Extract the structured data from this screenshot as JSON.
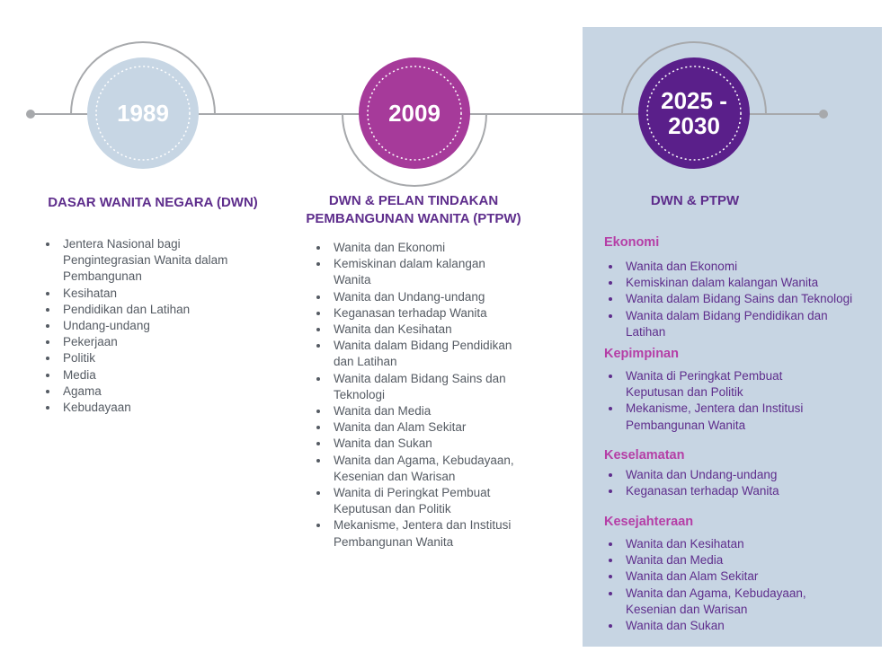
{
  "colors": {
    "circle_1989": "#c7d6e4",
    "circle_2009": "#a63a9a",
    "circle_2025": "#5a1f8a",
    "heading": "#5e2d8c",
    "subheading": "#b53ea6",
    "body_gray": "#555b63",
    "panel": "#c7d5e3"
  },
  "timeline": [
    {
      "year": "1989",
      "title": "DASAR WANITA NEGARA (DWN)",
      "items": [
        "Jentera Nasional bagi\nPengintegrasian Wanita dalam\nPembangunan",
        "Kesihatan",
        "Pendidikan dan Latihan",
        "Undang-undang",
        "Pekerjaan",
        "Politik",
        "Media",
        "Agama",
        "Kebudayaan"
      ]
    },
    {
      "year": "2009",
      "title": "DWN & PELAN TINDAKAN\nPEMBANGUNAN WANITA  (PTPW)",
      "items": [
        "Wanita dan Ekonomi",
        "Kemiskinan dalam kalangan\nWanita",
        "Wanita dan Undang-undang",
        "Keganasan terhadap Wanita",
        "Wanita dan Kesihatan",
        "Wanita dalam Bidang Pendidikan\ndan Latihan",
        "Wanita dalam Bidang Sains dan\nTeknologi",
        "Wanita dan Media",
        "Wanita dan Alam Sekitar",
        "Wanita dan Sukan",
        "Wanita dan Agama, Kebudayaan,\nKesenian dan Warisan",
        "Wanita di Peringkat Pembuat\nKeputusan dan Politik",
        "Mekanisme, Jentera dan Institusi\nPembangunan Wanita"
      ]
    },
    {
      "year_line1": "2025 -",
      "year_line2": "2030",
      "title": "DWN & PTPW",
      "sections": [
        {
          "name": "Ekonomi",
          "items": [
            "Wanita dan Ekonomi",
            "Kemiskinan dalam kalangan Wanita",
            "Wanita dalam Bidang Sains dan Teknologi",
            "Wanita dalam Bidang Pendidikan dan\nLatihan"
          ]
        },
        {
          "name": "Kepimpinan",
          "items": [
            "Wanita di Peringkat Pembuat\nKeputusan dan Politik",
            "Mekanisme, Jentera dan Institusi\nPembangunan Wanita"
          ]
        },
        {
          "name": "Keselamatan",
          "items": [
            "Wanita dan Undang-undang",
            "Keganasan terhadap Wanita"
          ]
        },
        {
          "name": "Kesejahteraan",
          "items": [
            "Wanita dan Kesihatan",
            "Wanita dan Media",
            "Wanita dan Alam Sekitar",
            "Wanita dan Agama, Kebudayaan,\nKesenian dan Warisan",
            "Wanita dan Sukan"
          ]
        }
      ]
    }
  ]
}
